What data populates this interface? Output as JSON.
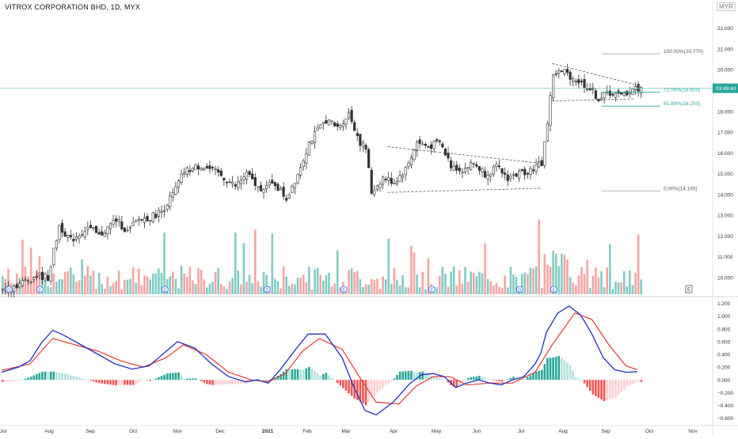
{
  "header": {
    "title": "VITROX CORPORATION BHD, 1D, MYX",
    "currency": "MYR"
  },
  "price_tag": "03:49:43",
  "colors": {
    "up": "#26a69a",
    "down": "#ef5350",
    "vol_up": "#80cbc4",
    "vol_down": "#f4a5a3",
    "macd": "#2230c4",
    "signal": "#e53935",
    "fib": "#9e9e9e",
    "fib_green": "#26a69a",
    "trend": "#555555",
    "priceline": "#80cbc4"
  },
  "chart_data": [
    {
      "type": "candlestick",
      "title": "VITROX CORPORATION BHD, 1D, MYX",
      "y_ticks": [
        10.0,
        11.0,
        12.0,
        13.0,
        14.0,
        15.0,
        16.0,
        17.0,
        18.0,
        19.0,
        20.0,
        21.0,
        22.0
      ],
      "y_tick_labels": [
        "10.000",
        "11.000",
        "12.000",
        "13.000",
        "14.000",
        "15.000",
        "16.000",
        "17.000",
        "18.000",
        "19.000",
        "20.000",
        "21.000",
        "22.000"
      ],
      "ylim": [
        9.2,
        22.9
      ],
      "x_labels": [
        "Jul",
        "Aug",
        "Sep",
        "Oct",
        "Nov",
        "Dec",
        "2021",
        "Feb",
        "Mar",
        "Apr",
        "May",
        "Jun",
        "Jul",
        "Aug",
        "Sep",
        "Oct",
        "Nov"
      ],
      "last_price": 19.11,
      "path": [
        [
          0,
          9.45
        ],
        [
          6,
          9.7
        ],
        [
          12,
          10.1
        ],
        [
          16,
          10.0
        ],
        [
          20,
          12.5
        ],
        [
          24,
          11.8
        ],
        [
          30,
          12.4
        ],
        [
          34,
          12.0
        ],
        [
          40,
          12.8
        ],
        [
          44,
          12.2
        ],
        [
          48,
          12.8
        ],
        [
          52,
          12.9
        ],
        [
          56,
          13.2
        ],
        [
          60,
          14.0
        ],
        [
          64,
          15.1
        ],
        [
          70,
          15.4
        ],
        [
          76,
          15.0
        ],
        [
          82,
          14.4
        ],
        [
          86,
          15.0
        ],
        [
          90,
          14.3
        ],
        [
          96,
          14.5
        ],
        [
          100,
          13.8
        ],
        [
          104,
          15.0
        ],
        [
          108,
          16.5
        ],
        [
          114,
          17.6
        ],
        [
          118,
          17.2
        ],
        [
          122,
          17.9
        ],
        [
          126,
          16.5
        ],
        [
          128,
          16.2
        ],
        [
          130,
          14.1
        ],
        [
          134,
          14.8
        ],
        [
          138,
          14.6
        ],
        [
          142,
          15.2
        ],
        [
          146,
          16.5
        ],
        [
          150,
          16.3
        ],
        [
          154,
          16.5
        ],
        [
          158,
          15.4
        ],
        [
          162,
          15.2
        ],
        [
          166,
          15.5
        ],
        [
          170,
          15.0
        ],
        [
          174,
          15.3
        ],
        [
          178,
          14.8
        ],
        [
          182,
          15.0
        ],
        [
          186,
          15.2
        ],
        [
          190,
          15.5
        ],
        [
          192,
          17.5
        ],
        [
          194,
          19.8
        ],
        [
          198,
          19.9
        ],
        [
          202,
          19.5
        ],
        [
          206,
          19.2
        ],
        [
          210,
          18.6
        ],
        [
          214,
          18.9
        ],
        [
          218,
          18.7
        ],
        [
          222,
          19.1
        ]
      ],
      "volume_ticks": [],
      "events": [
        {
          "label": "D",
          "pos": 2
        },
        {
          "label": "E",
          "pos": 13
        },
        {
          "label": "E",
          "pos": 57
        },
        {
          "label": "D",
          "pos": 93
        },
        {
          "label": "E",
          "pos": 120
        },
        {
          "label": "E",
          "pos": 151
        },
        {
          "label": "D",
          "pos": 182
        },
        {
          "label": "E",
          "pos": 194
        }
      ],
      "flag_events": [
        "E"
      ],
      "fibonacci": [
        {
          "label": "100.00%(20.770)",
          "value": 20.77
        },
        {
          "label": "72.00%(18.920)",
          "value": 18.92
        },
        {
          "label": "61.80%(18.250)",
          "value": 18.25
        },
        {
          "label": "0.00%(14.165)",
          "value": 14.165
        }
      ]
    },
    {
      "type": "line",
      "title": "",
      "series": [
        {
          "key": "macd"
        },
        {
          "key": "signal"
        },
        {
          "key": "histogram"
        }
      ],
      "y_ticks": [
        -0.6,
        -0.4,
        -0.2,
        0.0,
        0.2,
        0.4,
        0.6,
        0.8,
        1.0,
        1.2
      ],
      "y_tick_labels": [
        "−0.600",
        "−0.400",
        "−0.200",
        "0.000",
        "0.200",
        "0.400",
        "0.600",
        "0.800",
        "1.000",
        "1.200"
      ],
      "ylim": [
        -0.68,
        1.27
      ],
      "macd_points": [
        [
          0,
          0.12
        ],
        [
          6,
          0.2
        ],
        [
          10,
          0.3
        ],
        [
          14,
          0.58
        ],
        [
          18,
          0.78
        ],
        [
          22,
          0.7
        ],
        [
          28,
          0.55
        ],
        [
          34,
          0.4
        ],
        [
          40,
          0.25
        ],
        [
          46,
          0.17
        ],
        [
          52,
          0.22
        ],
        [
          58,
          0.45
        ],
        [
          62,
          0.6
        ],
        [
          68,
          0.5
        ],
        [
          74,
          0.25
        ],
        [
          80,
          0.05
        ],
        [
          86,
          -0.03
        ],
        [
          90,
          0.0
        ],
        [
          94,
          -0.05
        ],
        [
          98,
          0.15
        ],
        [
          104,
          0.5
        ],
        [
          108,
          0.72
        ],
        [
          114,
          0.72
        ],
        [
          120,
          0.35
        ],
        [
          124,
          -0.1
        ],
        [
          128,
          -0.48
        ],
        [
          132,
          -0.55
        ],
        [
          138,
          -0.35
        ],
        [
          144,
          -0.05
        ],
        [
          148,
          0.08
        ],
        [
          152,
          0.1
        ],
        [
          156,
          0.05
        ],
        [
          160,
          -0.12
        ],
        [
          164,
          -0.05
        ],
        [
          168,
          0.0
        ],
        [
          172,
          -0.05
        ],
        [
          176,
          -0.08
        ],
        [
          180,
          0.0
        ],
        [
          184,
          0.05
        ],
        [
          188,
          0.25
        ],
        [
          190,
          0.42
        ],
        [
          192,
          0.75
        ],
        [
          196,
          1.05
        ],
        [
          200,
          1.16
        ],
        [
          204,
          1.02
        ],
        [
          208,
          0.72
        ],
        [
          212,
          0.35
        ],
        [
          216,
          0.16
        ],
        [
          220,
          0.12
        ],
        [
          224,
          0.13
        ]
      ],
      "signal_points": [
        [
          0,
          0.15
        ],
        [
          10,
          0.25
        ],
        [
          18,
          0.65
        ],
        [
          26,
          0.55
        ],
        [
          34,
          0.45
        ],
        [
          42,
          0.3
        ],
        [
          50,
          0.2
        ],
        [
          58,
          0.35
        ],
        [
          64,
          0.55
        ],
        [
          72,
          0.4
        ],
        [
          80,
          0.12
        ],
        [
          88,
          0.0
        ],
        [
          94,
          -0.03
        ],
        [
          100,
          0.1
        ],
        [
          106,
          0.45
        ],
        [
          112,
          0.65
        ],
        [
          120,
          0.48
        ],
        [
          126,
          0.05
        ],
        [
          132,
          -0.35
        ],
        [
          140,
          -0.38
        ],
        [
          146,
          -0.1
        ],
        [
          152,
          0.05
        ],
        [
          158,
          0.05
        ],
        [
          164,
          -0.08
        ],
        [
          172,
          -0.05
        ],
        [
          180,
          -0.05
        ],
        [
          188,
          0.12
        ],
        [
          194,
          0.55
        ],
        [
          202,
          1.05
        ],
        [
          208,
          0.95
        ],
        [
          214,
          0.55
        ],
        [
          220,
          0.22
        ],
        [
          224,
          0.16
        ]
      ]
    }
  ]
}
